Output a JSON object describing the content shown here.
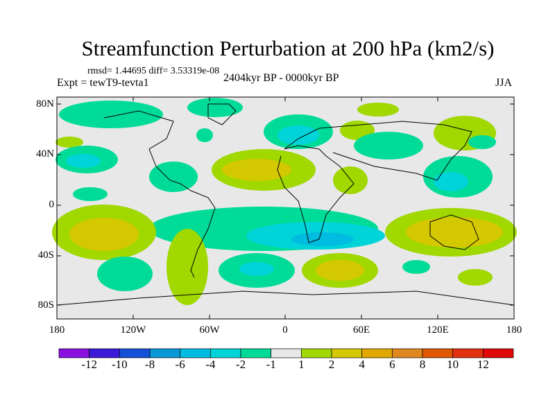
{
  "title": "Streamfunction Perturbation at 200 hPa (km2/s)",
  "rmsd_text": "rmsd= 1.44695 diff= 3.53319e-08",
  "experiment": "Expt = tewT9-tevta1",
  "period": "2404kyr BP - 0000kyr BP",
  "season": "JJA",
  "y_ticks": [
    "80N",
    "40N",
    "0",
    "40S",
    "80S"
  ],
  "x_ticks": [
    "180",
    "120W",
    "60W",
    "0",
    "60E",
    "120E",
    "180"
  ],
  "colorbar": {
    "labels": [
      "-12",
      "-10",
      "-8",
      "-6",
      "-4",
      "-2",
      "-1",
      "1",
      "2",
      "4",
      "6",
      "8",
      "10",
      "12"
    ],
    "colors": [
      "#8a10e0",
      "#3c18d8",
      "#1450d8",
      "#0898d8",
      "#00bce0",
      "#00d4d8",
      "#00dc98",
      "#e8e8e8",
      "#a0d800",
      "#d4c800",
      "#e0a800",
      "#e08820",
      "#e05800",
      "#e03010",
      "#e00808"
    ]
  }
}
